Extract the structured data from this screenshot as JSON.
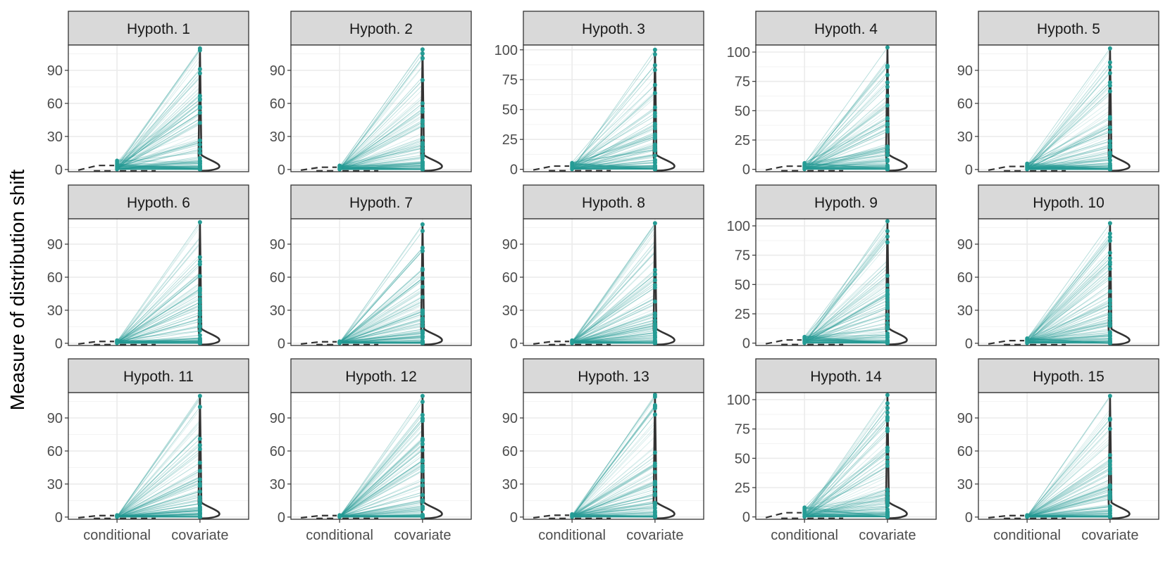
{
  "chart_data": {
    "type": "small-multiples (paired points with violin)",
    "ylabel": "Measure of distribution shift",
    "categories": [
      "conditional",
      "covariate"
    ],
    "colors": {
      "points": "#259c95",
      "lines": "#259c95",
      "violin": "#333333",
      "strip_fill": "#d9d9d9",
      "strip_border": "#333333",
      "grid": "#ebebeb"
    },
    "panels": [
      {
        "title": "Hypoth. 1",
        "ylim": [
          -2,
          113
        ],
        "yticks": [
          0,
          30,
          60,
          90
        ],
        "conditional_max": 9,
        "covariate_max": 110
      },
      {
        "title": "Hypoth. 2",
        "ylim": [
          -2,
          113
        ],
        "yticks": [
          0,
          30,
          60,
          90
        ],
        "conditional_max": 4,
        "covariate_max": 109
      },
      {
        "title": "Hypoth. 3",
        "ylim": [
          -2,
          104
        ],
        "yticks": [
          0,
          25,
          50,
          75,
          100
        ],
        "conditional_max": 6,
        "covariate_max": 100
      },
      {
        "title": "Hypoth. 4",
        "ylim": [
          -2,
          106
        ],
        "yticks": [
          0,
          25,
          50,
          75,
          100
        ],
        "conditional_max": 6,
        "covariate_max": 104
      },
      {
        "title": "Hypoth. 5",
        "ylim": [
          -2,
          113
        ],
        "yticks": [
          0,
          30,
          60,
          90
        ],
        "conditional_max": 6,
        "covariate_max": 110
      },
      {
        "title": "Hypoth. 6",
        "ylim": [
          -2,
          113
        ],
        "yticks": [
          0,
          30,
          60,
          90
        ],
        "conditional_max": 3,
        "covariate_max": 110
      },
      {
        "title": "Hypoth. 7",
        "ylim": [
          -2,
          113
        ],
        "yticks": [
          0,
          30,
          60,
          90
        ],
        "conditional_max": 2,
        "covariate_max": 108
      },
      {
        "title": "Hypoth. 8",
        "ylim": [
          -2,
          113
        ],
        "yticks": [
          0,
          30,
          60,
          90
        ],
        "conditional_max": 3,
        "covariate_max": 109
      },
      {
        "title": "Hypoth. 9",
        "ylim": [
          -2,
          106
        ],
        "yticks": [
          0,
          25,
          50,
          75,
          100
        ],
        "conditional_max": 6,
        "covariate_max": 104
      },
      {
        "title": "Hypoth. 10",
        "ylim": [
          -2,
          113
        ],
        "yticks": [
          0,
          30,
          60,
          90
        ],
        "conditional_max": 5,
        "covariate_max": 109
      },
      {
        "title": "Hypoth. 11",
        "ylim": [
          -2,
          113
        ],
        "yticks": [
          0,
          30,
          60,
          90
        ],
        "conditional_max": 2,
        "covariate_max": 110
      },
      {
        "title": "Hypoth. 12",
        "ylim": [
          -2,
          113
        ],
        "yticks": [
          0,
          30,
          60,
          90
        ],
        "conditional_max": 2,
        "covariate_max": 110
      },
      {
        "title": "Hypoth. 13",
        "ylim": [
          -2,
          113
        ],
        "yticks": [
          0,
          30,
          60,
          90
        ],
        "conditional_max": 3,
        "covariate_max": 111
      },
      {
        "title": "Hypoth. 14",
        "ylim": [
          -2,
          106
        ],
        "yticks": [
          0,
          25,
          50,
          75,
          100
        ],
        "conditional_max": 9,
        "covariate_max": 104
      },
      {
        "title": "Hypoth. 15",
        "ylim": [
          -2,
          113
        ],
        "yticks": [
          0,
          30,
          60,
          90
        ],
        "conditional_max": 2,
        "covariate_max": 110
      }
    ]
  }
}
